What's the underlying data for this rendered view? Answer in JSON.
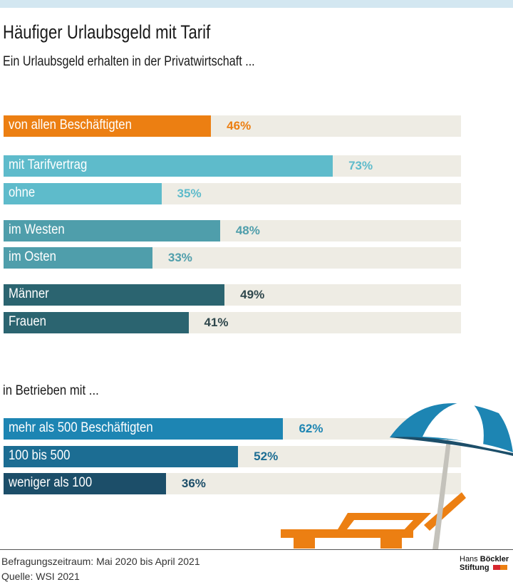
{
  "title": "Häufiger Urlaubsgeld mit Tarif",
  "subtitle": "Ein Urlaubsgeld erhalten in der Privatwirtschaft ...",
  "chart_data": [
    {
      "type": "bar",
      "orientation": "horizontal",
      "categories": [
        "von allen Beschäftigten",
        "mit Tarifvertrag",
        "ohne",
        "im Westen",
        "im Osten",
        "Männer",
        "Frauen"
      ],
      "values": [
        46,
        73,
        35,
        48,
        33,
        49,
        41
      ],
      "value_labels": [
        "46%",
        "73%",
        "35%",
        "48%",
        "33%",
        "49%",
        "41%"
      ],
      "colors": [
        "#ec7f12",
        "#5ebbcb",
        "#5ebbcb",
        "#4f9eab",
        "#4f9eab",
        "#2b6470",
        "#2b6470"
      ],
      "label_colors": [
        "#ec7f12",
        "#5ebbcb",
        "#5ebbcb",
        "#4f9eab",
        "#4f9eab",
        "#2f474c",
        "#2f474c"
      ],
      "xlim": [
        0,
        100
      ]
    },
    {
      "type": "bar",
      "orientation": "horizontal",
      "title": "in Betrieben mit ...",
      "categories": [
        "mehr als 500 Beschäftigten",
        "100 bis 500",
        "weniger als 100"
      ],
      "values": [
        62,
        52,
        36
      ],
      "value_labels": [
        "62%",
        "52%",
        "36%"
      ],
      "colors": [
        "#1d85b3",
        "#1c6d93",
        "#1c4e69"
      ],
      "label_colors": [
        "#1d85b3",
        "#1c6d93",
        "#1c4e69"
      ],
      "xlim": [
        0,
        100
      ]
    }
  ],
  "footer": {
    "period": "Befragungszeitraum: Mai 2020 bis April 2021",
    "source": "Quelle: WSI 2021",
    "logo_line1_a": "Hans",
    "logo_line1_b": "Böckler",
    "logo_line2": "Stiftung"
  }
}
